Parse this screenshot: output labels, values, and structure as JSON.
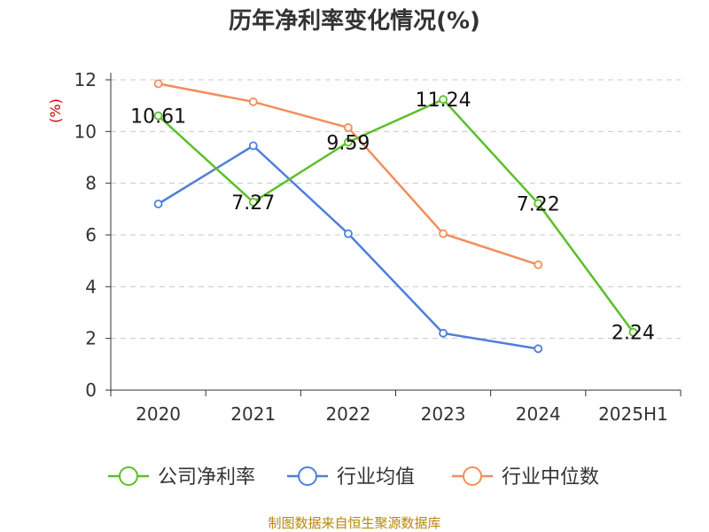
{
  "chart_data": {
    "type": "line",
    "title": "历年净利率变化情况(%)",
    "ylabel": "(%)",
    "xlabel": "",
    "categories": [
      "2020",
      "2021",
      "2022",
      "2023",
      "2024",
      "2025H1"
    ],
    "ylim": [
      0,
      12
    ],
    "yticks": [
      0,
      2,
      4,
      6,
      8,
      10,
      12
    ],
    "grid": true,
    "legend_position": "bottom",
    "series": [
      {
        "name": "公司净利率",
        "color": "#5cbf2a",
        "values": [
          10.61,
          7.27,
          9.59,
          11.24,
          7.22,
          2.24
        ],
        "labels": [
          "10.61",
          "7.27",
          "9.59",
          "11.24",
          "7.22",
          "2.24"
        ]
      },
      {
        "name": "行业均值",
        "color": "#4f7fd9",
        "values": [
          7.2,
          9.45,
          6.05,
          2.2,
          1.6,
          null
        ]
      },
      {
        "name": "行业中位数",
        "color": "#f28e5b",
        "values": [
          11.85,
          11.15,
          10.15,
          6.05,
          4.85,
          null
        ]
      }
    ]
  },
  "footer": {
    "source": "制图数据来自恒生聚源数据库"
  }
}
